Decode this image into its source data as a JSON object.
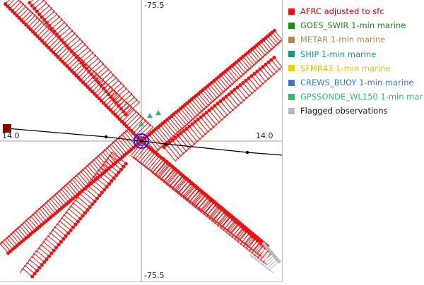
{
  "chart_data": {
    "type": "scatter",
    "title": "",
    "axis_labels": {
      "top": "-75.5",
      "bottom": "-75.5",
      "left": "14.0",
      "right": "14.0"
    },
    "x_range": [
      -1,
      1
    ],
    "y_range": [
      -1,
      1
    ],
    "grid": false,
    "legend_placement": "right",
    "legend": [
      {
        "label": "AFRC adjusted to sfc",
        "color": "#ee1111",
        "text_color": "#e00000"
      },
      {
        "label": "GOES_SWIR 1-min marine",
        "color": "#1a8c1a",
        "text_color": "#1a8c1a"
      },
      {
        "label": "METAR 1-min marine",
        "color": "#b08a5a",
        "text_color": "#b08a5a"
      },
      {
        "label": "SHIP 1-min marine",
        "color": "#17948f",
        "text_color": "#17948f"
      },
      {
        "label": "SFMR43 1-min marine",
        "color": "#f2cc00",
        "text_color": "#e8be00"
      },
      {
        "label": "CREWS_BUOY 1-min marine",
        "color": "#3a78c9",
        "text_color": "#3a78c9"
      },
      {
        "label": "GPSSONDE_WL150 1-min mar",
        "color": "#35b86c",
        "text_color": "#35b86c"
      },
      {
        "label": "Flagged observations",
        "color": "#b8b8b8",
        "text_color": "#111111"
      }
    ],
    "series": [
      {
        "legend_index": 0,
        "leg": "NE",
        "start": [
          0.0,
          0.0
        ],
        "end": [
          0.95,
          0.79
        ],
        "count": 60
      },
      {
        "legend_index": 0,
        "leg": "NE-outer",
        "start": [
          0.15,
          -0.05
        ],
        "end": [
          0.95,
          0.6
        ],
        "count": 40
      },
      {
        "legend_index": 0,
        "leg": "NW",
        "start": [
          0.0,
          0.0
        ],
        "end": [
          -0.97,
          0.98
        ],
        "count": 60
      },
      {
        "legend_index": 0,
        "leg": "NW-outer",
        "start": [
          -0.1,
          0.18
        ],
        "end": [
          -0.8,
          0.99
        ],
        "count": 40
      },
      {
        "legend_index": 0,
        "leg": "SW",
        "start": [
          0.0,
          0.0
        ],
        "end": [
          -0.95,
          -0.8
        ],
        "count": 60
      },
      {
        "legend_index": 0,
        "leg": "SW-outer",
        "start": [
          -0.1,
          -0.15
        ],
        "end": [
          -0.78,
          -0.97
        ],
        "count": 40
      },
      {
        "legend_index": 0,
        "leg": "SE",
        "start": [
          0.0,
          0.0
        ],
        "end": [
          0.9,
          -0.75
        ],
        "count": 60
      },
      {
        "legend_index": 0,
        "leg": "SE-outer",
        "start": [
          0.15,
          -0.12
        ],
        "end": [
          0.93,
          -0.8
        ],
        "count": 40
      },
      {
        "legend_index": 7,
        "leg": "SE-flagged",
        "start": [
          0.86,
          -0.72
        ],
        "end": [
          0.98,
          -0.86
        ],
        "count": 10
      },
      {
        "legend_index": 6,
        "leg": "center",
        "points": [
          [
            0.06,
            0.18
          ],
          [
            0.12,
            0.2
          ],
          [
            0.0,
            0.12
          ]
        ]
      }
    ],
    "track": {
      "color": "#000000",
      "points": [
        [
          -0.95,
          0.09
        ],
        [
          -0.25,
          0.03
        ],
        [
          0.0,
          0.0
        ],
        [
          0.17,
          -0.02
        ],
        [
          0.75,
          -0.08
        ],
        [
          1.0,
          -0.1
        ]
      ]
    },
    "center_marker": {
      "x": 0.0,
      "y": 0.0,
      "color": "#1a1aee"
    },
    "start_marker": {
      "x": -0.95,
      "y": 0.09,
      "color": "#8b0000"
    }
  }
}
